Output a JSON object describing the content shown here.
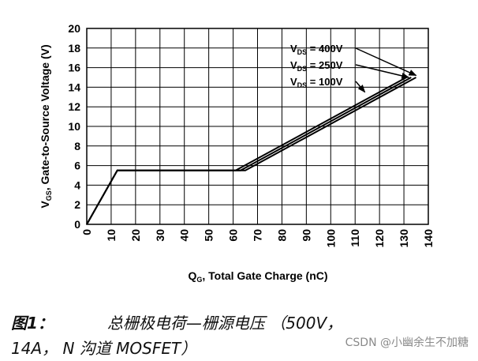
{
  "chart_data": {
    "type": "line",
    "xlabel_main": "Q",
    "xlabel_sub": "G",
    "xlabel_rest": ", Total Gate Charge (nC)",
    "ylabel_main": "V",
    "ylabel_sub": "GS",
    "ylabel_rest": ", Gate-to-Source Voltage (V)",
    "xlim": [
      0,
      140
    ],
    "ylim": [
      0,
      20
    ],
    "xticks": [
      0,
      10,
      20,
      30,
      40,
      50,
      60,
      70,
      80,
      90,
      100,
      110,
      120,
      130,
      140
    ],
    "yticks": [
      0,
      2,
      4,
      6,
      8,
      10,
      12,
      14,
      16,
      18,
      20
    ],
    "grid": true,
    "legend_placement": "top-right",
    "series": [
      {
        "name_main": "V",
        "name_sub": "DS",
        "name_rest": " = 400V",
        "x": [
          0,
          12.5,
          65,
          135
        ],
        "y": [
          0,
          5.5,
          5.5,
          15
        ]
      },
      {
        "name_main": "V",
        "name_sub": "DS",
        "name_rest": " = 250V",
        "x": [
          0,
          12.5,
          63,
          133
        ],
        "y": [
          0,
          5.5,
          5.5,
          15
        ]
      },
      {
        "name_main": "V",
        "name_sub": "DS",
        "name_rest": " = 100V",
        "x": [
          0,
          12.5,
          61,
          131
        ],
        "y": [
          0,
          5.5,
          5.5,
          15
        ]
      }
    ],
    "legend_arrow_targets": [
      {
        "x": 135,
        "y": 15.2
      },
      {
        "x": 132,
        "y": 15.0
      },
      {
        "x": 114,
        "y": 13.5
      }
    ]
  },
  "caption": {
    "fig_label": "图1：",
    "title": "总栅极电荷—栅源电压 （500V，",
    "line2": "14A， N 沟道 MOSFET）"
  },
  "watermark": "CSDN @小幽余生不加糖"
}
